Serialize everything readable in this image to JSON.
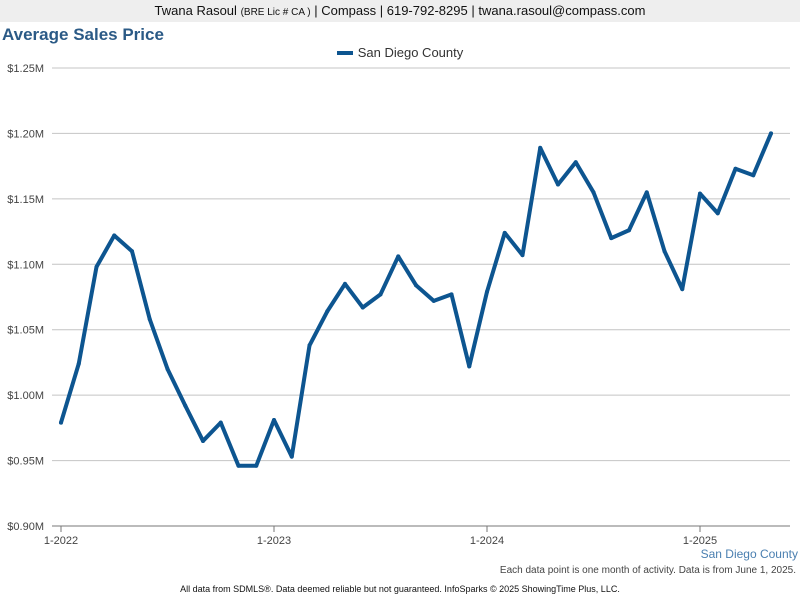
{
  "header": {
    "name": "Twana Rasoul",
    "license": "(BRE Lic # CA )",
    "company": "| Compass |",
    "phone": "619-792-8295",
    "separator": "|",
    "email": "twana.rasoul@compass.com"
  },
  "chart_data": {
    "type": "line",
    "title": "Average Sales Price",
    "xlabel": "",
    "ylabel": "",
    "ylim": [
      900000,
      1250000
    ],
    "y_ticks": [
      {
        "value": 900000,
        "label": "$0.90M"
      },
      {
        "value": 950000,
        "label": "$0.95M"
      },
      {
        "value": 1000000,
        "label": "$1.00M"
      },
      {
        "value": 1050000,
        "label": "$1.05M"
      },
      {
        "value": 1100000,
        "label": "$1.10M"
      },
      {
        "value": 1150000,
        "label": "$1.15M"
      },
      {
        "value": 1200000,
        "label": "$1.20M"
      },
      {
        "value": 1250000,
        "label": "$1.25M"
      }
    ],
    "x_ticks": [
      {
        "index": 0,
        "label": "1-2022"
      },
      {
        "index": 12,
        "label": "1-2023"
      },
      {
        "index": 24,
        "label": "1-2024"
      },
      {
        "index": 36,
        "label": "1-2025"
      }
    ],
    "x": [
      "1-2022",
      "2-2022",
      "3-2022",
      "4-2022",
      "5-2022",
      "6-2022",
      "7-2022",
      "8-2022",
      "9-2022",
      "10-2022",
      "11-2022",
      "12-2022",
      "1-2023",
      "2-2023",
      "3-2023",
      "4-2023",
      "5-2023",
      "6-2023",
      "7-2023",
      "8-2023",
      "9-2023",
      "10-2023",
      "11-2023",
      "12-2023",
      "1-2024",
      "2-2024",
      "3-2024",
      "4-2024",
      "5-2024",
      "6-2024",
      "7-2024",
      "8-2024",
      "9-2024",
      "10-2024",
      "11-2024",
      "12-2024",
      "1-2025",
      "2-2025",
      "3-2025",
      "4-2025",
      "5-2025"
    ],
    "grid": true,
    "legend_position": "top-center",
    "series": [
      {
        "name": "San Diego County",
        "color": "#0d5590",
        "values": [
          979000,
          1024000,
          1098000,
          1122000,
          1110000,
          1058000,
          1020000,
          992000,
          965000,
          979000,
          946000,
          946000,
          981000,
          953000,
          1038000,
          1064000,
          1085000,
          1067000,
          1077000,
          1106000,
          1084000,
          1072000,
          1077000,
          1022000,
          1079000,
          1124000,
          1107000,
          1189000,
          1161000,
          1178000,
          1155000,
          1120000,
          1126000,
          1155000,
          1110000,
          1081000,
          1154000,
          1139000,
          1173000,
          1168000,
          1200000
        ]
      }
    ]
  },
  "series_caption": "San Diego County",
  "note": "Each data point is one month of activity. Data is from June 1, 2025.",
  "footer": "All data from SDMLS®. Data deemed reliable but not guaranteed. InfoSparks © 2025 ShowingTime Plus, LLC."
}
